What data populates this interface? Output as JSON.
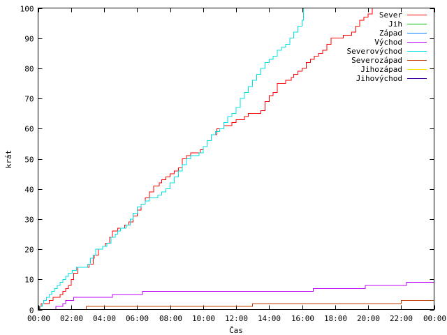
{
  "chart_data": {
    "type": "line",
    "title": "",
    "xlabel": "Čas",
    "ylabel": "krát",
    "xlim_minutes": [
      0,
      1440
    ],
    "ylim": [
      0,
      100
    ],
    "x_tick_labels": [
      "00:00",
      "02:00",
      "04:00",
      "06:00",
      "08:00",
      "10:00",
      "12:00",
      "14:00",
      "16:00",
      "18:00",
      "20:00",
      "22:00",
      "00:00"
    ],
    "y_ticks": [
      0,
      10,
      20,
      30,
      40,
      50,
      60,
      70,
      80,
      90,
      100
    ],
    "grid": false,
    "legend_position": "top-right",
    "series": [
      {
        "name": "Sever",
        "color": "#ff0000",
        "x_minutes": [
          0,
          5,
          12,
          20,
          40,
          55,
          70,
          80,
          90,
          100,
          110,
          120,
          130,
          145,
          155,
          170,
          185,
          200,
          205,
          220,
          235,
          245,
          260,
          270,
          280,
          290,
          300,
          315,
          330,
          345,
          360,
          375,
          390,
          405,
          420,
          440,
          450,
          465,
          480,
          495,
          510,
          525,
          540,
          555,
          570,
          590,
          600,
          615,
          630,
          650,
          660,
          675,
          690,
          705,
          720,
          735,
          750,
          765,
          780,
          795,
          810,
          825,
          840,
          855,
          870,
          885,
          900,
          920,
          930,
          945,
          960,
          975,
          990,
          1005,
          1020,
          1035,
          1050,
          1065,
          1080,
          1095,
          1110,
          1125,
          1140,
          1155,
          1170,
          1185,
          1200,
          1215,
          1222
        ],
        "y": [
          0,
          1,
          2,
          2,
          3,
          4,
          4,
          5,
          6,
          7,
          8,
          10,
          12,
          14,
          14,
          14,
          15,
          17,
          18,
          20,
          21,
          22,
          24,
          26,
          26,
          27,
          27,
          28,
          29,
          31,
          33,
          35,
          37,
          39,
          41,
          42,
          43,
          44,
          45,
          46,
          47,
          50,
          51,
          52,
          52,
          53,
          54,
          56,
          58,
          60,
          60,
          61,
          61,
          62,
          63,
          63,
          64,
          65,
          65,
          65,
          66,
          69,
          71,
          72,
          75,
          75,
          76,
          77,
          78,
          79,
          80,
          82,
          83,
          84,
          85,
          86,
          88,
          90,
          90,
          90,
          91,
          91,
          92,
          94,
          96,
          97,
          98,
          100,
          100
        ]
      },
      {
        "name": "Jih",
        "color": "#00c000",
        "x_minutes": [],
        "y": []
      },
      {
        "name": "Západ",
        "color": "#0080ff",
        "x_minutes": [],
        "y": []
      },
      {
        "name": "Východ",
        "color": "#c000ff",
        "x_minutes": [
          60,
          65,
          90,
          100,
          130,
          240,
          270,
          330,
          380,
          600,
          780,
          870,
          1000,
          1080,
          1190,
          1310,
          1340,
          1440
        ],
        "y": [
          0,
          1,
          2,
          3,
          4,
          4,
          5,
          5,
          6,
          6,
          6,
          6,
          7,
          7,
          8,
          8,
          9,
          9
        ]
      },
      {
        "name": "Severovýchod",
        "color": "#00e0e0",
        "x_minutes": [
          0,
          8,
          15,
          20,
          30,
          40,
          50,
          60,
          70,
          80,
          90,
          100,
          110,
          125,
          140,
          155,
          170,
          180,
          190,
          200,
          210,
          220,
          235,
          250,
          265,
          280,
          290,
          300,
          320,
          335,
          345,
          360,
          375,
          390,
          405,
          420,
          435,
          450,
          465,
          480,
          495,
          510,
          525,
          540,
          555,
          570,
          585,
          600,
          615,
          630,
          645,
          660,
          675,
          690,
          705,
          720,
          735,
          750,
          765,
          780,
          795,
          810,
          825,
          840,
          855,
          870,
          885,
          900,
          915,
          930,
          945,
          960,
          965
        ],
        "y": [
          0,
          1,
          2,
          3,
          4,
          5,
          6,
          7,
          8,
          9,
          10,
          11,
          12,
          13,
          14,
          14,
          14,
          15,
          17,
          18,
          20,
          20,
          21,
          22,
          24,
          25,
          26,
          27,
          28,
          30,
          32,
          34,
          35,
          36,
          37,
          37,
          38,
          39,
          40,
          42,
          44,
          46,
          48,
          50,
          51,
          51,
          52,
          54,
          56,
          58,
          59,
          60,
          62,
          64,
          65,
          67,
          70,
          72,
          74,
          76,
          78,
          80,
          82,
          83,
          84,
          86,
          87,
          88,
          90,
          92,
          94,
          96,
          100
        ]
      },
      {
        "name": "Severozápad",
        "color": "#c04000",
        "x_minutes": [
          170,
          175,
          600,
          780,
          1320,
          1440
        ],
        "y": [
          0,
          1,
          1,
          2,
          3,
          4
        ]
      },
      {
        "name": "Jihozápad",
        "color": "#ffe000",
        "x_minutes": [],
        "y": []
      },
      {
        "name": "Jihovýchod",
        "color": "#4000a0",
        "x_minutes": [],
        "y": []
      }
    ]
  }
}
